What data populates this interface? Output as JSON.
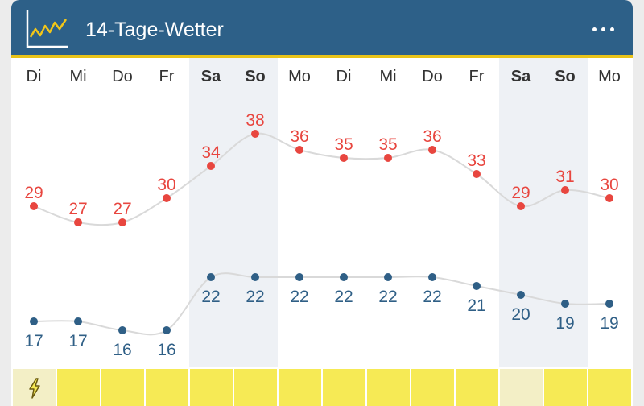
{
  "header": {
    "title": "14-Tage-Wetter",
    "logo_icon": "line-chart-icon",
    "menu_icon": "more-horizontal-icon",
    "bg_color": "#2d6088",
    "accent_color": "#e9c318"
  },
  "days": [
    {
      "label": "Di",
      "weekend": false
    },
    {
      "label": "Mi",
      "weekend": false
    },
    {
      "label": "Do",
      "weekend": false
    },
    {
      "label": "Fr",
      "weekend": false
    },
    {
      "label": "Sa",
      "weekend": true
    },
    {
      "label": "So",
      "weekend": true
    },
    {
      "label": "Mo",
      "weekend": false
    },
    {
      "label": "Di",
      "weekend": false
    },
    {
      "label": "Mi",
      "weekend": false
    },
    {
      "label": "Do",
      "weekend": false
    },
    {
      "label": "Fr",
      "weekend": false
    },
    {
      "label": "Sa",
      "weekend": true
    },
    {
      "label": "So",
      "weekend": true
    },
    {
      "label": "Mo",
      "weekend": false
    }
  ],
  "chart_data": {
    "type": "line",
    "categories": [
      "Di",
      "Mi",
      "Do",
      "Fr",
      "Sa",
      "So",
      "Mo",
      "Di",
      "Mi",
      "Do",
      "Fr",
      "Sa",
      "So",
      "Mo"
    ],
    "series": [
      {
        "values": [
          29,
          27,
          27,
          30,
          34,
          38,
          36,
          35,
          35,
          36,
          33,
          29,
          31,
          30
        ],
        "color": "#e8463f"
      },
      {
        "values": [
          17,
          17,
          16,
          16,
          22,
          22,
          22,
          22,
          22,
          22,
          21,
          20,
          19,
          19
        ],
        "color": "#2f5f86"
      }
    ],
    "line_color": "#d9d9d9",
    "grid": false
  },
  "warning_strip": {
    "color": "#f6ea55",
    "highlight_color": "#f3efc6",
    "highlight_index": 11,
    "icon": "lightning-bolt-icon",
    "icon_index": 0
  }
}
